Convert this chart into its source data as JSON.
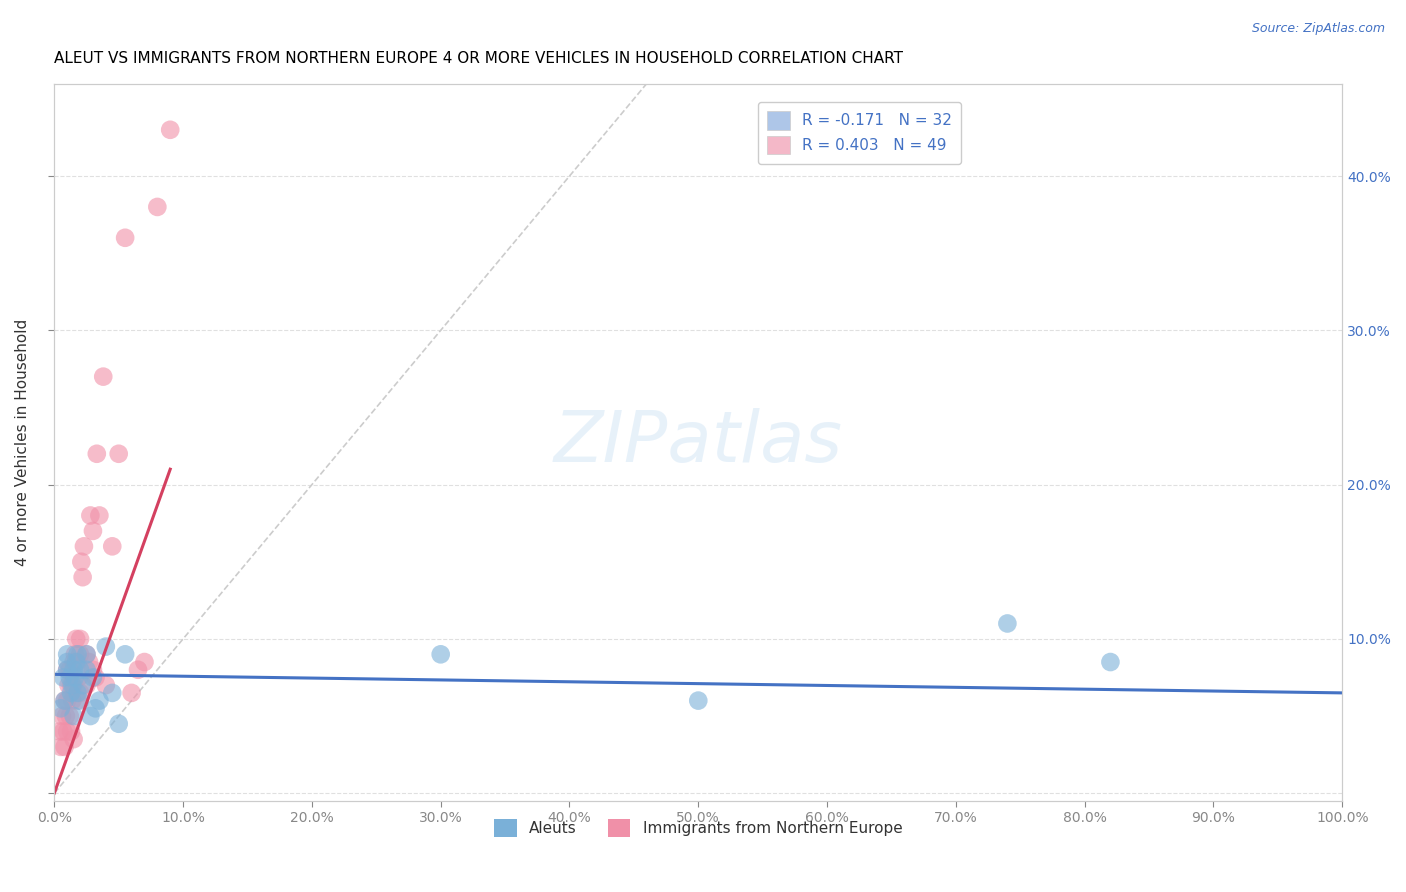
{
  "title": "ALEUT VS IMMIGRANTS FROM NORTHERN EUROPE 4 OR MORE VEHICLES IN HOUSEHOLD CORRELATION CHART",
  "source": "Source: ZipAtlas.com",
  "ylabel": "4 or more Vehicles in Household",
  "xlim": [
    0.0,
    1.0
  ],
  "ylim": [
    -0.005,
    0.46
  ],
  "xticks": [
    0.0,
    0.1,
    0.2,
    0.3,
    0.4,
    0.5,
    0.6,
    0.7,
    0.8,
    0.9,
    1.0
  ],
  "xticklabels": [
    "0.0%",
    "10.0%",
    "20.0%",
    "30.0%",
    "40.0%",
    "50.0%",
    "60.0%",
    "70.0%",
    "80.0%",
    "90.0%",
    "100.0%"
  ],
  "yticks": [
    0.0,
    0.1,
    0.2,
    0.3,
    0.4
  ],
  "yticklabels_left": [
    "",
    "",
    "",
    "",
    ""
  ],
  "yticklabels_right": [
    "",
    "10.0%",
    "20.0%",
    "30.0%",
    "40.0%"
  ],
  "legend_entries": [
    {
      "label": "R = -0.171   N = 32",
      "color": "#aec6e8"
    },
    {
      "label": "R = 0.403   N = 49",
      "color": "#f4b8c8"
    }
  ],
  "legend_bottom": [
    "Aleuts",
    "Immigrants from Northern Europe"
  ],
  "aleuts_color": "#7ab0d8",
  "immigrants_color": "#f090a8",
  "aleuts_line_color": "#4472c4",
  "immigrants_line_color": "#d44060",
  "diagonal_color": "#cccccc",
  "background_color": "#ffffff",
  "grid_color": "#e0e0e0",
  "title_color": "#000000",
  "source_color": "#4472c4",
  "axis_color": "#cccccc",
  "aleuts_x": [
    0.005,
    0.007,
    0.008,
    0.01,
    0.01,
    0.01,
    0.012,
    0.013,
    0.014,
    0.015,
    0.015,
    0.016,
    0.017,
    0.018,
    0.018,
    0.02,
    0.02,
    0.022,
    0.025,
    0.025,
    0.028,
    0.03,
    0.032,
    0.035,
    0.04,
    0.045,
    0.05,
    0.055,
    0.3,
    0.5,
    0.74,
    0.82
  ],
  "aleuts_y": [
    0.055,
    0.075,
    0.06,
    0.085,
    0.09,
    0.08,
    0.075,
    0.065,
    0.07,
    0.05,
    0.08,
    0.075,
    0.085,
    0.065,
    0.09,
    0.06,
    0.08,
    0.07,
    0.08,
    0.09,
    0.05,
    0.075,
    0.055,
    0.06,
    0.095,
    0.065,
    0.045,
    0.09,
    0.09,
    0.06,
    0.11,
    0.085
  ],
  "immigrants_x": [
    0.004,
    0.005,
    0.006,
    0.007,
    0.008,
    0.008,
    0.009,
    0.01,
    0.01,
    0.01,
    0.011,
    0.012,
    0.012,
    0.013,
    0.013,
    0.014,
    0.015,
    0.015,
    0.015,
    0.016,
    0.017,
    0.018,
    0.018,
    0.019,
    0.02,
    0.02,
    0.02,
    0.021,
    0.022,
    0.023,
    0.025,
    0.025,
    0.027,
    0.028,
    0.03,
    0.03,
    0.032,
    0.033,
    0.035,
    0.038,
    0.04,
    0.045,
    0.05,
    0.055,
    0.06,
    0.065,
    0.07,
    0.08,
    0.09
  ],
  "immigrants_y": [
    0.04,
    0.03,
    0.05,
    0.04,
    0.06,
    0.03,
    0.05,
    0.04,
    0.06,
    0.08,
    0.07,
    0.05,
    0.08,
    0.07,
    0.04,
    0.06,
    0.035,
    0.07,
    0.085,
    0.09,
    0.1,
    0.06,
    0.085,
    0.075,
    0.065,
    0.09,
    0.1,
    0.15,
    0.14,
    0.16,
    0.07,
    0.09,
    0.085,
    0.18,
    0.08,
    0.17,
    0.075,
    0.22,
    0.18,
    0.27,
    0.07,
    0.16,
    0.22,
    0.36,
    0.065,
    0.08,
    0.085,
    0.38,
    0.43
  ],
  "immigrants_line_x": [
    0.0,
    0.09
  ],
  "immigrants_line_y_start": 0.0,
  "immigrants_line_y_end": 0.21,
  "aleuts_line_x": [
    0.0,
    1.0
  ],
  "aleuts_line_y_start": 0.077,
  "aleuts_line_y_end": 0.065
}
